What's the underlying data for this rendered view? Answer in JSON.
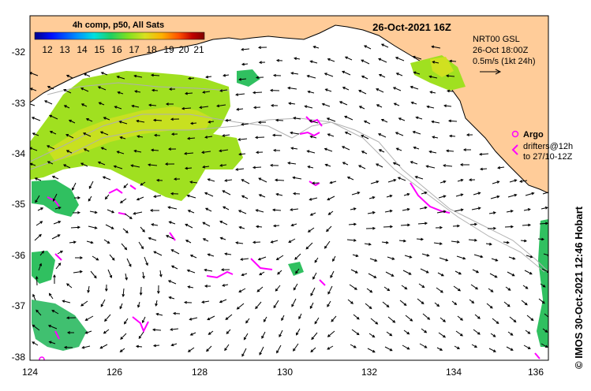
{
  "title": "26-Oct-2021 16Z",
  "colorbar": {
    "title": "4h comp, p50, All Sats",
    "labels": [
      "12",
      "13",
      "14",
      "15",
      "16",
      "17",
      "18",
      "19",
      "20",
      "21"
    ],
    "colors": [
      "#00008b",
      "#0010ff",
      "#0090ff",
      "#00e0e0",
      "#20d060",
      "#80e020",
      "#d8e020",
      "#ffb000",
      "#ff5000",
      "#c00000",
      "#800000"
    ]
  },
  "current_info": {
    "line1": "NRT00 GSL",
    "line2": "26-Oct 18:00Z",
    "line3": "0.5m/s (1kt 24h)"
  },
  "argo_legend": {
    "label": "Argo",
    "drifters": "drifters@12h",
    "range": "to 27/10-12Z",
    "color": "#ff00ff"
  },
  "credit": "©  IMOS 30-Oct-2021 12:46 Hobart",
  "axes": {
    "x_ticks": [
      "124",
      "126",
      "128",
      "130",
      "132",
      "134",
      "136"
    ],
    "y_ticks": [
      "-32",
      "-33",
      "-34",
      "-35",
      "-36",
      "-37",
      "-38"
    ]
  },
  "colors": {
    "land": "#ffcc99",
    "sst_main": "#a0e020",
    "sst_warm": "#d0e020",
    "sst_cool": "#30c060",
    "argo": "#ff00ff",
    "contour": "#b0b0b0"
  }
}
